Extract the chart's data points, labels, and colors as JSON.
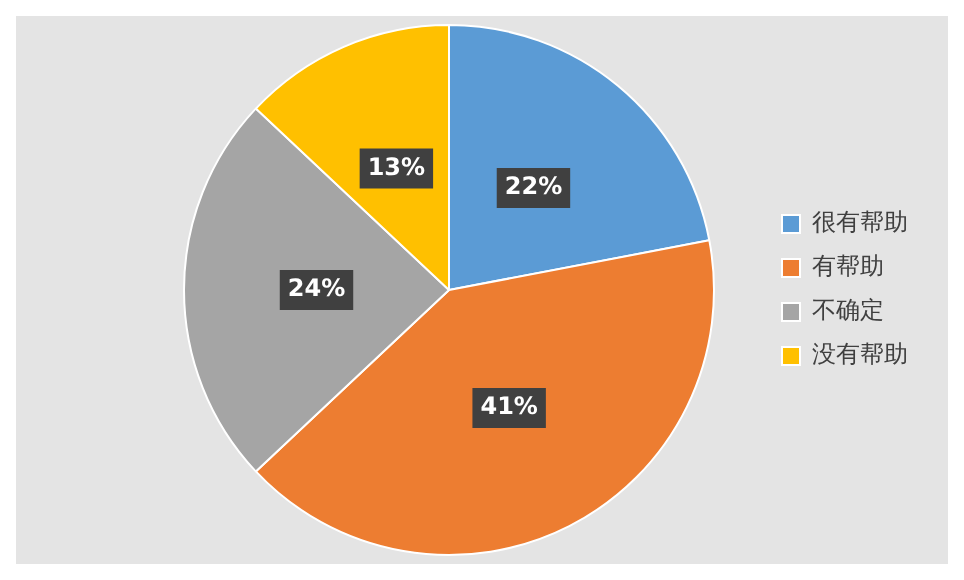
{
  "chart_data": {
    "type": "pie",
    "categories": [
      "很有帮助",
      "有帮助",
      "不确定",
      "没有帮助"
    ],
    "values": [
      22,
      41,
      24,
      13
    ],
    "colors": [
      "#5b9bd5",
      "#ed7d31",
      "#a5a5a5",
      "#ffc000"
    ],
    "value_labels": [
      "22%",
      "41%",
      "24%",
      "13%"
    ],
    "legend": "right"
  }
}
